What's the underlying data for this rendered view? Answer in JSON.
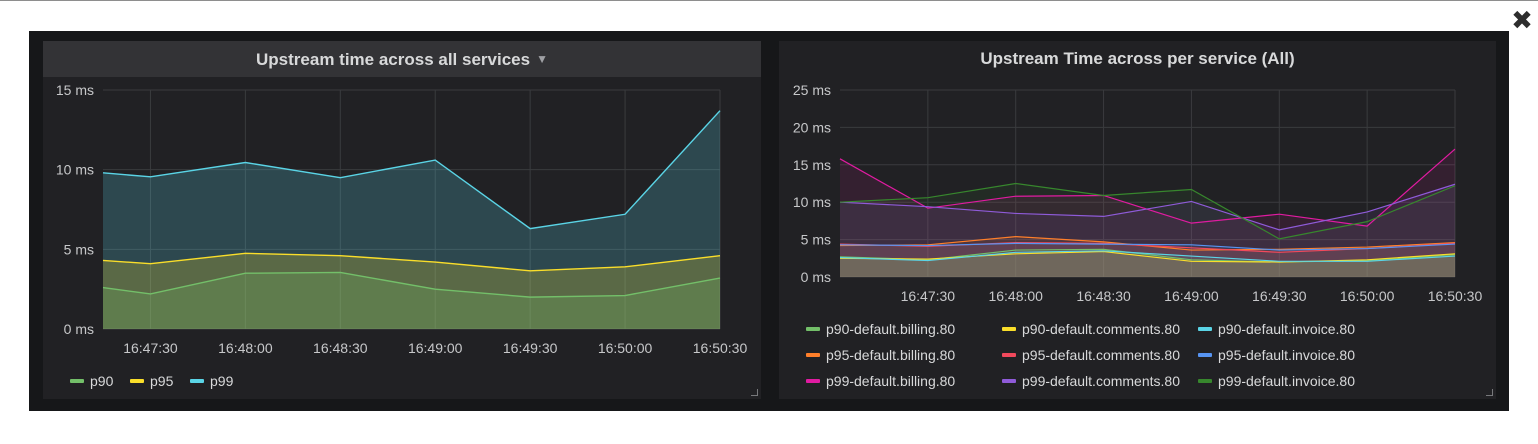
{
  "close": {
    "icon": "close-icon",
    "symbol": "✖"
  },
  "panels": [
    {
      "title": "Upstream time across all services",
      "has_menu_caret": true,
      "chart_data": {
        "type": "area",
        "title": "Upstream time across all services",
        "x": [
          "16:47:15",
          "16:47:30",
          "16:47:45",
          "16:48:00",
          "16:48:15",
          "16:48:30",
          "16:48:45",
          "16:49:00",
          "16:49:15",
          "16:49:30",
          "16:49:45",
          "16:50:00",
          "16:50:15",
          "16:50:30"
        ],
        "x_tick_labels": [
          "16:47:30",
          "16:48:00",
          "16:48:30",
          "16:49:00",
          "16:49:30",
          "16:50:00",
          "16:50:30"
        ],
        "y_tick_labels": [
          "0 ms",
          "5 ms",
          "10 ms",
          "15 ms"
        ],
        "ylim": [
          0,
          15
        ],
        "grid": true,
        "legend_position": "bottom-left",
        "series": [
          {
            "name": "p90",
            "color": "#73bf69",
            "values": [
              2.6,
              2.2,
              null,
              3.5,
              null,
              3.55,
              null,
              2.5,
              null,
              2.0,
              null,
              2.1,
              null,
              3.2
            ]
          },
          {
            "name": "p95",
            "color": "#fade2a",
            "values": [
              4.3,
              4.1,
              null,
              4.75,
              null,
              4.6,
              null,
              4.2,
              null,
              3.65,
              null,
              3.9,
              null,
              4.6
            ]
          },
          {
            "name": "p99",
            "color": "#5ad4e6",
            "values": [
              9.8,
              9.55,
              null,
              10.45,
              null,
              9.5,
              null,
              10.6,
              null,
              6.3,
              null,
              7.2,
              null,
              13.7
            ]
          }
        ]
      }
    },
    {
      "title": "Upstream Time across per service (All)",
      "has_menu_caret": false,
      "chart_data": {
        "type": "area",
        "title": "Upstream Time across per service (All)",
        "x": [
          "16:47:00",
          "16:47:30",
          "16:48:00",
          "16:48:30",
          "16:49:00",
          "16:49:30",
          "16:50:00",
          "16:50:30"
        ],
        "x_tick_labels": [
          "16:47:30",
          "16:48:00",
          "16:48:30",
          "16:49:00",
          "16:49:30",
          "16:50:00",
          "16:50:30"
        ],
        "y_tick_labels": [
          "0 ms",
          "5 ms",
          "10 ms",
          "15 ms",
          "20 ms",
          "25 ms"
        ],
        "ylim": [
          0,
          25
        ],
        "grid": true,
        "legend_position": "bottom-left",
        "series": [
          {
            "name": "p90-default.billing.80",
            "color": "#73bf69",
            "values": [
              2.7,
              2.3,
              3.6,
              3.7,
              2.3,
              2.0,
              2.2,
              3.0
            ]
          },
          {
            "name": "p90-default.comments.80",
            "color": "#fade2a",
            "values": [
              2.5,
              2.4,
              3.1,
              3.4,
              2.1,
              2.0,
              2.3,
              3.1
            ]
          },
          {
            "name": "p90-default.invoice.80",
            "color": "#5ad4e6",
            "values": [
              2.6,
              2.2,
              3.3,
              3.5,
              2.8,
              2.1,
              2.1,
              2.8
            ]
          },
          {
            "name": "p95-default.billing.80",
            "color": "#ff7f2a",
            "values": [
              4.2,
              4.3,
              5.4,
              4.7,
              3.6,
              3.7,
              4.0,
              4.6
            ]
          },
          {
            "name": "p95-default.comments.80",
            "color": "#f2495c",
            "values": [
              4.4,
              4.1,
              4.6,
              4.5,
              3.9,
              3.3,
              3.8,
              4.5
            ]
          },
          {
            "name": "p95-default.invoice.80",
            "color": "#5794f2",
            "values": [
              4.3,
              4.2,
              4.5,
              4.4,
              4.3,
              3.6,
              3.8,
              4.4
            ]
          },
          {
            "name": "p99-default.billing.80",
            "color": "#e01ba1",
            "values": [
              15.8,
              9.2,
              10.8,
              10.9,
              7.2,
              8.4,
              6.8,
              17.1
            ]
          },
          {
            "name": "p99-default.comments.80",
            "color": "#8f5bd9",
            "values": [
              10.0,
              9.4,
              8.5,
              8.1,
              10.1,
              6.3,
              8.7,
              12.4
            ]
          },
          {
            "name": "p99-default.invoice.80",
            "color": "#37872d",
            "values": [
              10.0,
              10.6,
              12.5,
              10.9,
              11.7,
              5.1,
              7.4,
              12.2
            ]
          }
        ]
      }
    }
  ]
}
